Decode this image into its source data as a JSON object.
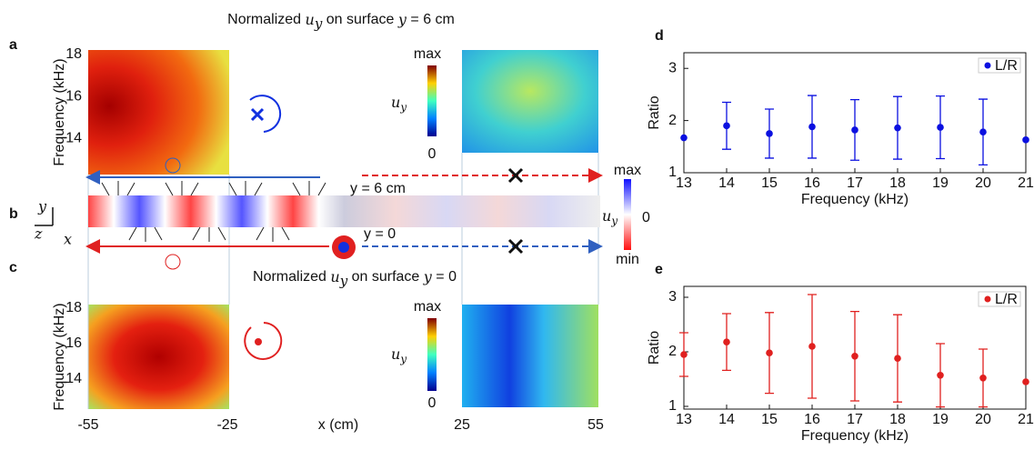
{
  "figure": {
    "panel_labels": [
      "a",
      "b",
      "c"
    ],
    "title_a": [
      "Normalized ",
      "u",
      "y",
      " on surface ",
      "y",
      " = 6 cm"
    ],
    "title_c": [
      "Normalized ",
      "u",
      "y",
      " on surface ",
      "y",
      " = 0"
    ],
    "freq_label": "Frequency (kHz)",
    "freq_ticks": [
      18,
      16,
      14
    ],
    "freq_lim": [
      12.3,
      18.2
    ],
    "colorbar": [
      "max",
      "0"
    ],
    "colorbar_label": [
      "u",
      "y"
    ],
    "strip_labels": [
      "y = 6 cm",
      "y = 0"
    ],
    "strip_colorbar": [
      "max",
      "min",
      "0"
    ],
    "strip_colorbar_label": [
      "u",
      "y"
    ],
    "axes_labels": [
      "y",
      "z",
      "x"
    ],
    "x_ticks": [
      -55,
      -25,
      25,
      55
    ],
    "x_label": "x (cm)"
  },
  "chart_data": [
    {
      "type": "errorbar",
      "panel": "d",
      "x_label": "Frequency (kHz)",
      "y_label": "Ratio",
      "x": [
        13,
        14,
        15,
        16,
        17,
        18,
        19,
        20,
        21
      ],
      "xlim": [
        13,
        21
      ],
      "xticks": [
        13,
        14,
        15,
        16,
        17,
        18,
        19,
        20,
        21
      ],
      "ylim": [
        1,
        3.3
      ],
      "yticks": [
        1,
        2,
        3
      ],
      "legend": "upper right",
      "series": [
        {
          "name": "L/R",
          "color": "#0b10e0",
          "values": [
            1.67,
            1.9,
            1.75,
            1.88,
            1.82,
            1.86,
            1.87,
            1.78,
            1.63
          ],
          "errors": [
            null,
            0.45,
            0.47,
            0.6,
            0.58,
            0.6,
            0.6,
            0.63,
            null
          ]
        }
      ]
    },
    {
      "type": "errorbar",
      "panel": "e",
      "x_label": "Frequency (kHz)",
      "y_label": "Ratio",
      "x": [
        13,
        14,
        15,
        16,
        17,
        18,
        19,
        20,
        21
      ],
      "xlim": [
        13,
        21
      ],
      "xticks": [
        13,
        14,
        15,
        16,
        17,
        18,
        19,
        20,
        21
      ],
      "ylim": [
        0.95,
        3.2
      ],
      "yticks": [
        1,
        2,
        3
      ],
      "legend": "upper right",
      "series": [
        {
          "name": "L/R",
          "color": "#e0201f",
          "values": [
            1.95,
            2.18,
            1.98,
            2.1,
            1.92,
            1.88,
            1.57,
            1.52,
            1.45
          ],
          "errors": [
            0.4,
            0.52,
            0.74,
            0.95,
            0.82,
            0.8,
            0.58,
            0.53,
            null
          ]
        }
      ]
    }
  ]
}
